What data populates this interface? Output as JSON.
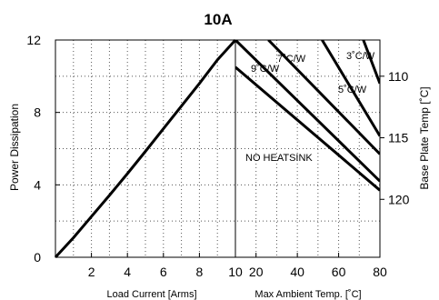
{
  "chart_data": {
    "type": "line",
    "title": "10A",
    "ylabel": "Power Dissipation",
    "ylim": [
      0,
      12
    ],
    "y_ticks": [
      "0",
      "4",
      "8",
      "12"
    ],
    "grid": true,
    "left_panel": {
      "xlabel": "Load Current  [Arms]",
      "xlim": [
        0,
        10
      ],
      "x_ticks": [
        "2",
        "4",
        "6",
        "8",
        "10"
      ],
      "series": [
        {
          "x": [
            0,
            1,
            2,
            3,
            4,
            5,
            6,
            7,
            8,
            9,
            10
          ],
          "y": [
            0,
            1.08,
            2.25,
            3.42,
            4.62,
            5.85,
            7.1,
            8.35,
            9.6,
            10.9,
            12.0
          ]
        }
      ]
    },
    "right_panel": {
      "xlabel": "Max Ambient Temp. [˚C]",
      "x_ticks": [
        "20",
        "40",
        "60",
        "80"
      ],
      "x_tick_values": [
        20,
        40,
        60,
        80
      ],
      "xlim": [
        10,
        80
      ],
      "series": [
        {
          "name": "NO HEATSINK",
          "x": [
            10,
            80
          ],
          "y": [
            10.5,
            3.7
          ]
        },
        {
          "name": "9˚C/W",
          "x": [
            10,
            80
          ],
          "y": [
            12.0,
            4.2
          ]
        },
        {
          "name": "7˚C/W",
          "x": [
            26,
            80
          ],
          "y": [
            12.0,
            5.7
          ]
        },
        {
          "name": "5˚C/W",
          "x": [
            52,
            80
          ],
          "y": [
            12.0,
            6.7
          ]
        },
        {
          "name": "3˚C/W",
          "x": [
            72,
            80
          ],
          "y": [
            12.0,
            9.6
          ]
        }
      ],
      "label_positions_note": ""
    },
    "right_axis": {
      "label": "Base Plate Temp [˚C]",
      "ticks": [
        {
          "label": "110",
          "y": 10
        },
        {
          "label": "115",
          "y": 6.6
        },
        {
          "label": "120",
          "y": 3.2
        }
      ]
    },
    "annotations": [
      "NO HEATSINK",
      "9˚C/W",
      "7˚C/W",
      "5˚C/W",
      "3˚C/W"
    ]
  }
}
